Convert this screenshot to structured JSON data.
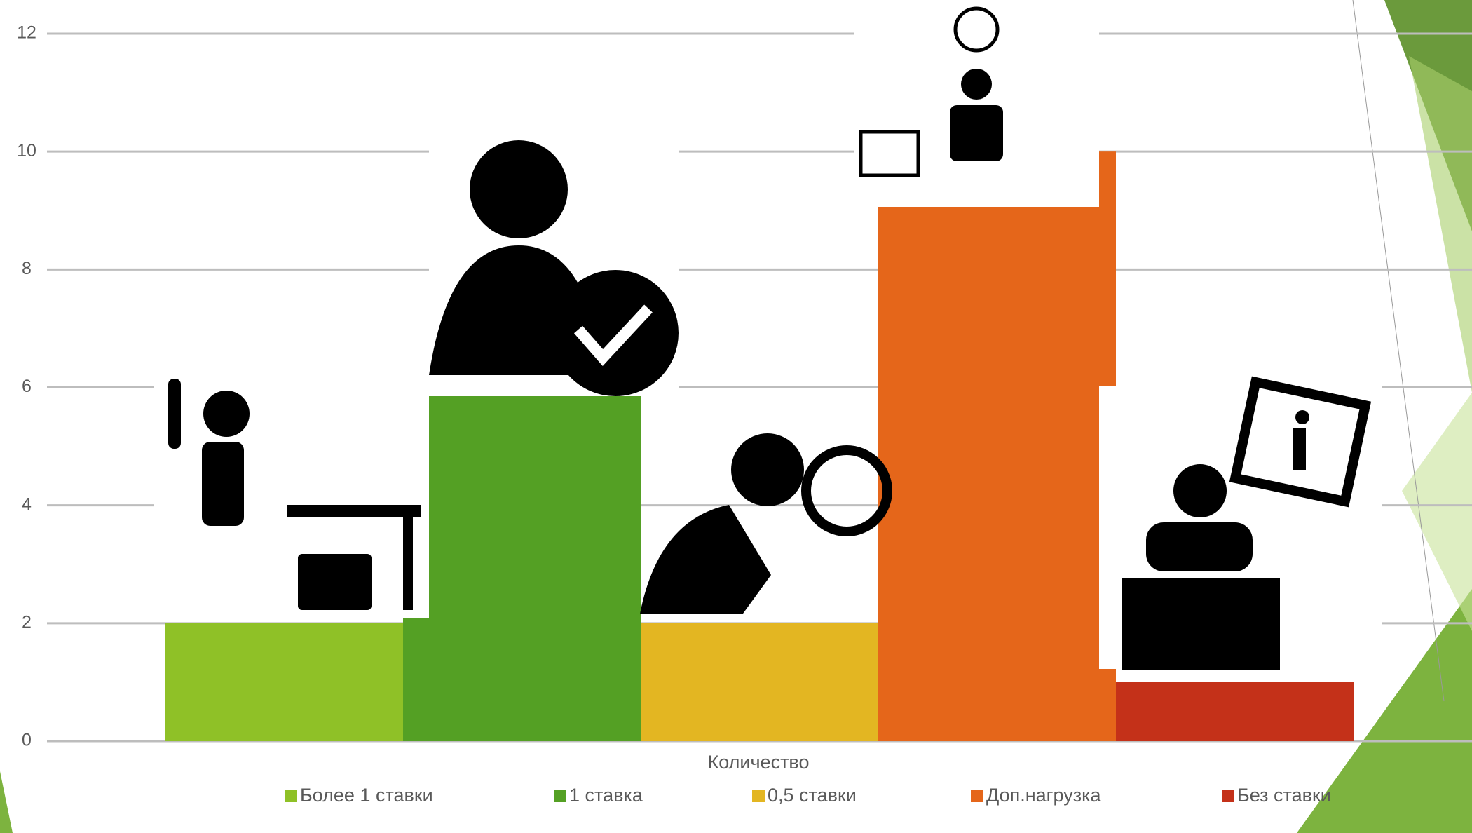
{
  "chart_data": {
    "type": "bar",
    "axis_title": "Количество",
    "categories": [
      "Количество"
    ],
    "series": [
      {
        "name": "Более 1 ставки",
        "color": "#8fc127",
        "values": [
          2
        ]
      },
      {
        "name": "1 ставка",
        "color": "#54a024",
        "values": [
          6
        ]
      },
      {
        "name": "0,5 ставки",
        "color": "#e3b622",
        "values": [
          2
        ]
      },
      {
        "name": "Доп.нагрузка",
        "color": "#e5661a",
        "values": [
          10
        ]
      },
      {
        "name": "Без ставки",
        "color": "#c43119",
        "values": [
          1
        ]
      }
    ],
    "ylim": [
      0,
      12
    ],
    "yticks": [
      0,
      2,
      4,
      6,
      8,
      10,
      12
    ],
    "grid": true,
    "legend": "bottom"
  }
}
